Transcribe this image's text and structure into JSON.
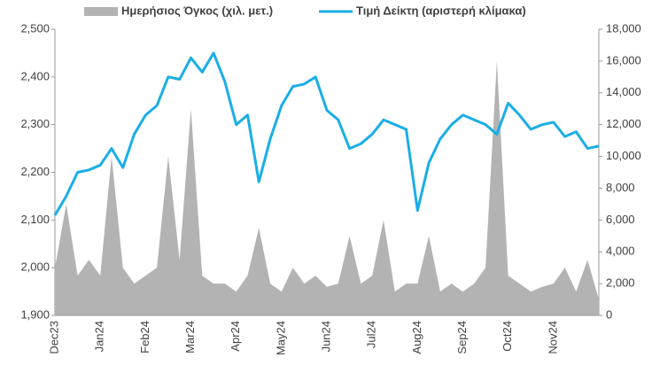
{
  "chart_data": {
    "type": "line",
    "legend": "top",
    "categories": [
      "Dec23",
      null,
      null,
      null,
      "Jan24",
      null,
      null,
      null,
      "Feb24",
      null,
      null,
      null,
      "Mar24",
      null,
      null,
      null,
      "Apr24",
      null,
      null,
      null,
      "May24",
      null,
      null,
      null,
      "Jun24",
      null,
      null,
      null,
      "Jul24",
      null,
      null,
      null,
      "Aug24",
      null,
      null,
      null,
      "Sep24",
      null,
      null,
      null,
      "Oct24",
      null,
      null,
      null,
      "Nov24",
      null,
      null,
      null,
      null
    ],
    "series": [
      {
        "name": "Ημερήσιος Όγκος (χιλ. μετ.)",
        "type": "area",
        "axis": "y2",
        "color": "#b3b3b3",
        "values": [
          3000,
          7000,
          2500,
          3500,
          2500,
          10000,
          3000,
          2000,
          2500,
          3000,
          10000,
          3500,
          13000,
          2500,
          2000,
          2000,
          1500,
          2500,
          5500,
          2000,
          1500,
          3000,
          2000,
          2500,
          1800,
          2000,
          5000,
          2000,
          2500,
          6000,
          1500,
          2000,
          2000,
          5000,
          1500,
          2000,
          1500,
          2000,
          3000,
          16000,
          2500,
          2000,
          1500,
          1800,
          2000,
          3000,
          1500,
          3500,
          1000
        ]
      },
      {
        "name": "Τιμή Δείκτη (αριστερή κλίμακα)",
        "type": "line",
        "color": "#1aaee6",
        "values": [
          2110,
          2150,
          2200,
          2205,
          2215,
          2250,
          2210,
          2280,
          2320,
          2340,
          2400,
          2395,
          2440,
          2410,
          2450,
          2390,
          2300,
          2320,
          2180,
          2270,
          2340,
          2380,
          2385,
          2400,
          2330,
          2310,
          2250,
          2260,
          2280,
          2310,
          2300,
          2290,
          2120,
          2220,
          2270,
          2300,
          2320,
          2310,
          2300,
          2280,
          2345,
          2320,
          2290,
          2300,
          2305,
          2275,
          2285,
          2250,
          2255
        ]
      }
    ],
    "ylim": [
      1900,
      2500
    ],
    "yticks": [
      {
        "value": 1900,
        "label": "1,900"
      },
      {
        "value": 2000,
        "label": "2,000"
      },
      {
        "value": 2100,
        "label": "2,100"
      },
      {
        "value": 2200,
        "label": "2,200"
      },
      {
        "value": 2300,
        "label": "2,300"
      },
      {
        "value": 2400,
        "label": "2,400"
      },
      {
        "value": 2500,
        "label": "2,500"
      }
    ],
    "y2lim": [
      0,
      18000
    ],
    "y2ticks": [
      0,
      {
        "value": 2000,
        "label": "2,000"
      },
      {
        "value": 4000,
        "label": "4,000"
      },
      {
        "value": 6000,
        "label": "6,000"
      },
      {
        "value": 8000,
        "label": "8,000"
      },
      {
        "value": 10000,
        "label": "10,000"
      },
      {
        "value": 12000,
        "label": "12,000"
      },
      {
        "value": 14000,
        "label": "14,000"
      },
      {
        "value": 16000,
        "label": "16,000"
      },
      {
        "value": 18000,
        "label": "18,000"
      }
    ],
    "grid": false
  }
}
